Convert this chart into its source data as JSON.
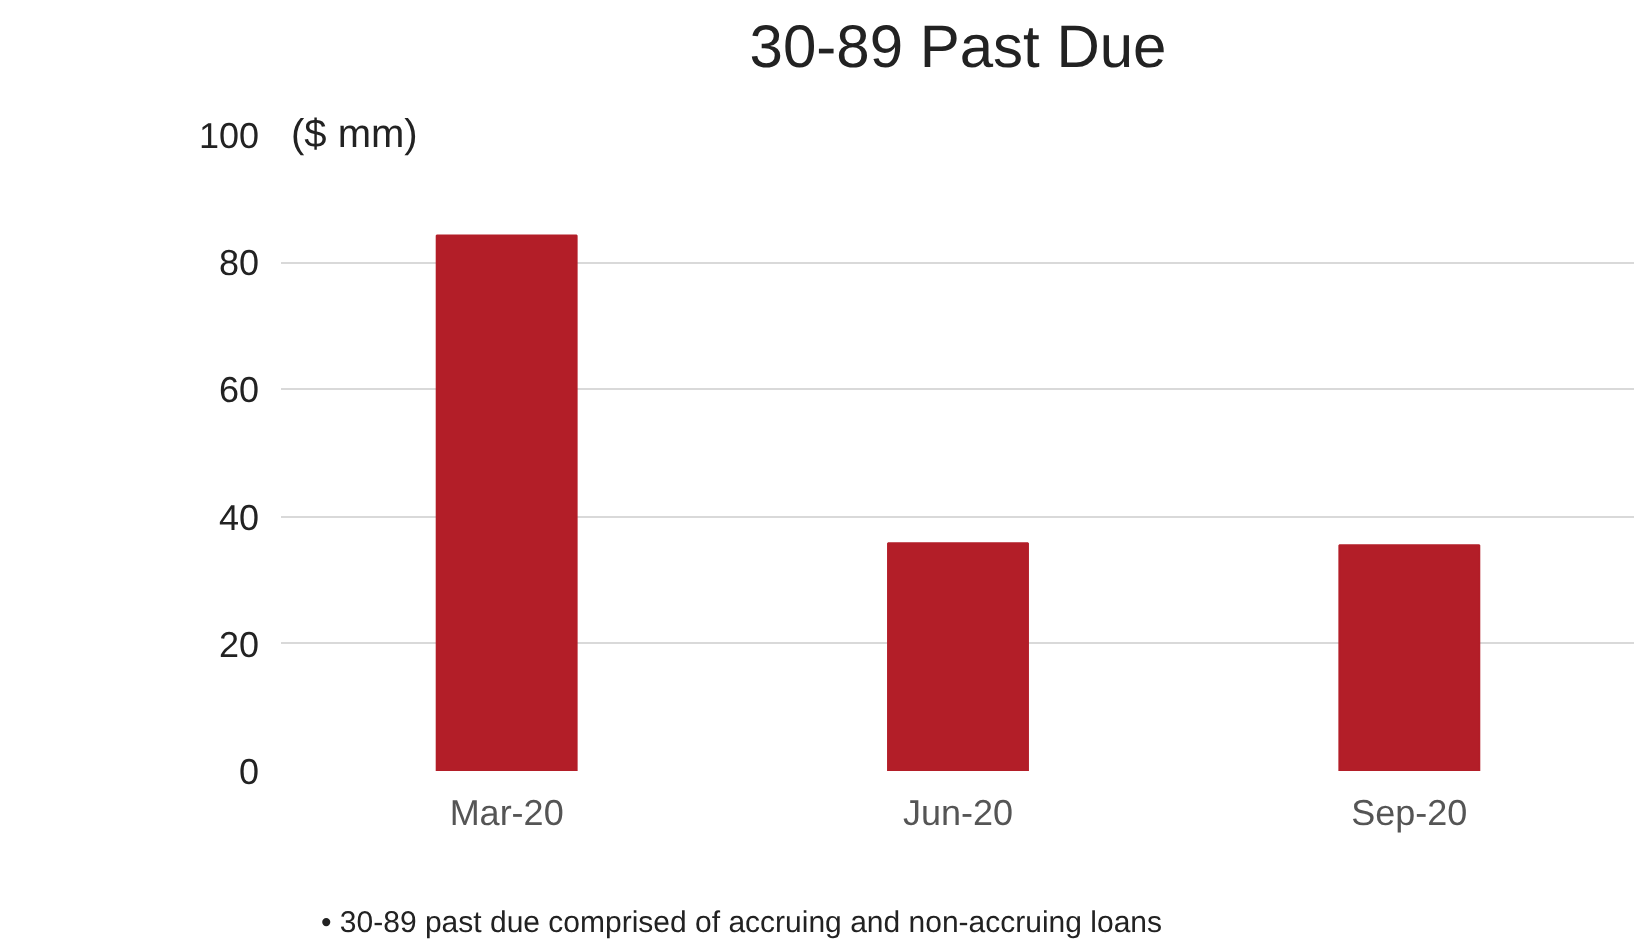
{
  "chart_data": {
    "type": "bar",
    "title": "30-89 Past Due",
    "ylabel": "($ mm)",
    "categories": [
      "Mar-20",
      "Jun-20",
      "Sep-20"
    ],
    "values": [
      84.2,
      35.8,
      35.5
    ],
    "color": "#b31e28",
    "ylim": [
      0,
      100
    ],
    "yticks": [
      0,
      20,
      40,
      60,
      80,
      100
    ],
    "grid": "y",
    "annotations": [
      "•     30-89 past due comprised of accruing and non-accruing loans"
    ]
  }
}
